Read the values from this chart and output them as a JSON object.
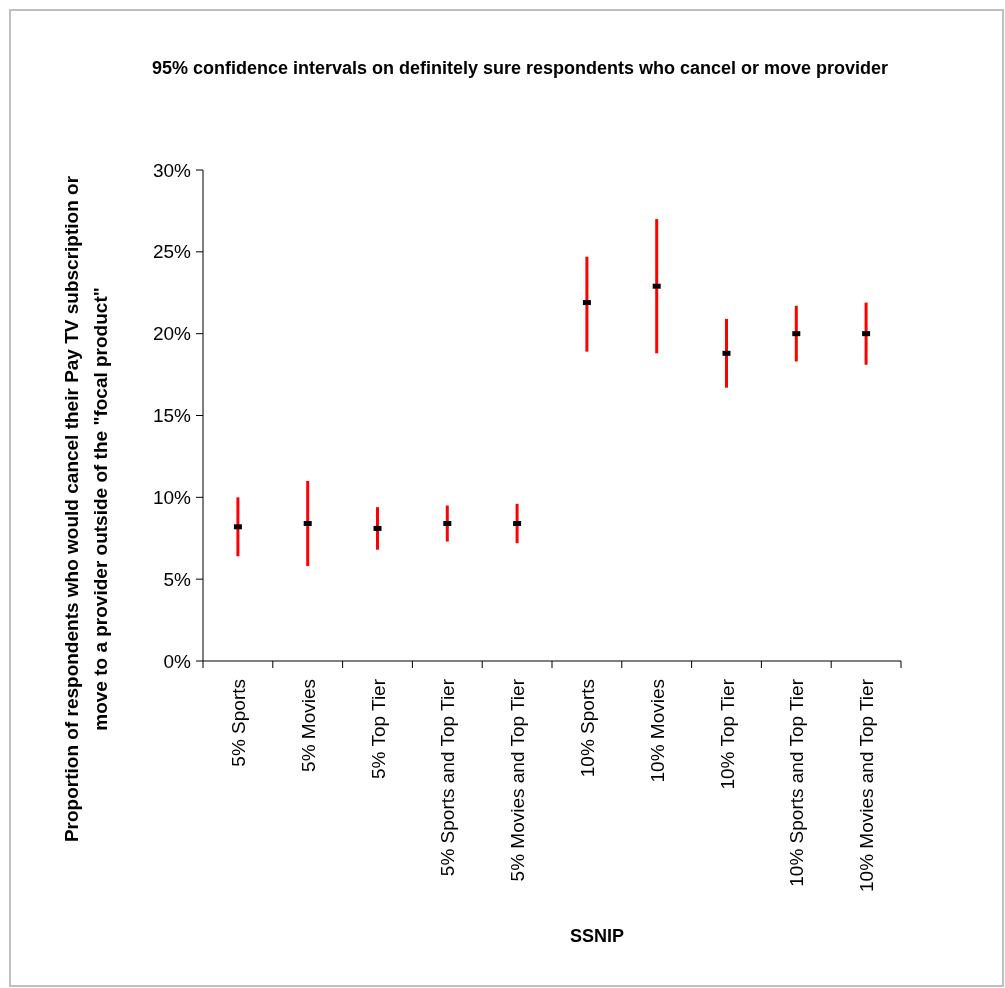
{
  "chart_data": {
    "type": "scatter",
    "title": "95% confidence intervals on definitely sure respondents who cancel or move provider",
    "xlabel": "SSNIP",
    "ylabel": "Proportion of respondents who would cancel their Pay TV subscription or move to a provider outside of the \"focal product\"",
    "categories": [
      "5% Sports",
      "5% Movies",
      "5% Top Tier",
      "5% Sports and Top Tier",
      "5% Movies and Top Tier",
      "10% Sports",
      "10% Movies",
      "10% Top Tier",
      "10% Sports and Top Tier",
      "10% Movies and Top Tier"
    ],
    "series": [
      {
        "color": "#000000",
        "values": [
          8.2,
          8.4,
          8.1,
          8.4,
          8.4,
          21.9,
          22.9,
          18.8,
          20.0,
          20.0
        ],
        "errors": [
          [
            6.4,
            10.0
          ],
          [
            5.8,
            11.0
          ],
          [
            6.8,
            9.4
          ],
          [
            7.3,
            9.5
          ],
          [
            7.2,
            9.6
          ],
          [
            18.9,
            24.7
          ],
          [
            18.8,
            27.0
          ],
          [
            16.7,
            20.9
          ],
          [
            18.3,
            21.7
          ],
          [
            18.1,
            21.9
          ]
        ]
      }
    ],
    "ylim": [
      0,
      30
    ],
    "yticks": [
      {
        "value": 0,
        "label": "0%"
      },
      {
        "value": 5,
        "label": "5%"
      },
      {
        "value": 10,
        "label": "10%"
      },
      {
        "value": 15,
        "label": "15%"
      },
      {
        "value": 20,
        "label": "20%"
      },
      {
        "value": 25,
        "label": "25%"
      },
      {
        "value": 30,
        "label": "30%"
      }
    ],
    "marker": "square",
    "grid": false
  }
}
